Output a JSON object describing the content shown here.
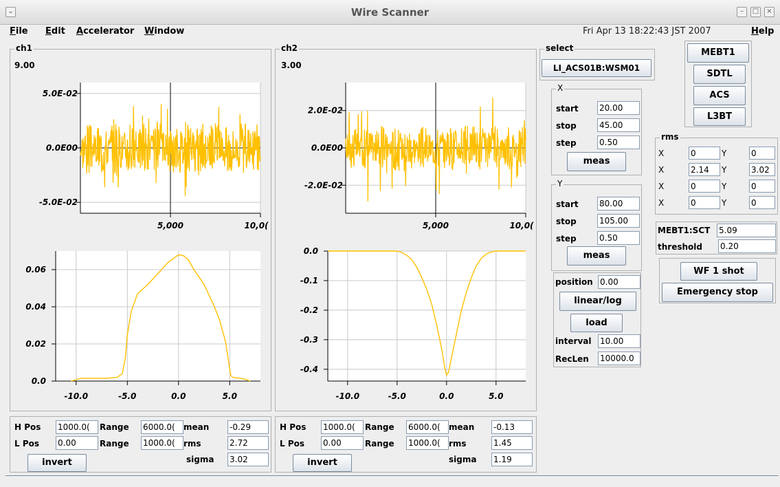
{
  "window": {
    "title": "Wire Scanner"
  },
  "menu": {
    "items": [
      {
        "u": "F",
        "rest": "ile"
      },
      {
        "u": "E",
        "rest": "dit"
      },
      {
        "u": "A",
        "rest": "ccelerator"
      },
      {
        "u": "W",
        "rest": "indow"
      }
    ],
    "datetime": "Fri Apr 13 18:22:43 JST 2007",
    "help_u": "H",
    "help_rest": "elp"
  },
  "colors": {
    "signal": "#ffc000",
    "background": "#eeeeee"
  },
  "ch1": {
    "label": "ch1",
    "value": "9.00",
    "bottom": {
      "hpos_label": "H Pos",
      "hpos": "1000.0(",
      "range1_label": "Range",
      "range1": "6000.0(",
      "mean_label": "mean",
      "mean": "-0.29",
      "lpos_label": "L Pos",
      "lpos": "0.00",
      "range2_label": "Range",
      "range2": "1000.0(",
      "rms_label": "rms",
      "rms": "2.72",
      "sigma_label": "sigma",
      "sigma": "3.02",
      "invert": "invert"
    }
  },
  "ch2": {
    "label": "ch2",
    "value": "3.00",
    "bottom": {
      "hpos_label": "H Pos",
      "hpos": "1000.0(",
      "range1_label": "Range",
      "range1": "6000.0(",
      "mean_label": "mean",
      "mean": "-0.13",
      "lpos_label": "L Pos",
      "lpos": "0.00",
      "range2_label": "Range",
      "range2": "1000.0(",
      "rms_label": "rms",
      "rms": "1.45",
      "sigma_label": "sigma",
      "sigma": "1.19",
      "invert": "invert"
    }
  },
  "select": {
    "label": "select",
    "value": "LI_ACS01B:WSM01"
  },
  "sections": [
    "MEBT1",
    "SDTL",
    "ACS",
    "L3BT"
  ],
  "xscan": {
    "label": "X",
    "start_label": "start",
    "start": "20.00",
    "stop_label": "stop",
    "stop": "45.00",
    "step_label": "step",
    "step": "0.50",
    "meas": "meas"
  },
  "yscan": {
    "label": "Y",
    "start_label": "start",
    "start": "80.00",
    "stop_label": "stop",
    "stop": "105.00",
    "step_label": "step",
    "step": "0.50",
    "meas": "meas"
  },
  "control": {
    "position_label": "position",
    "position": "0.00",
    "linlog": "linear/log",
    "load": "load",
    "interval_label": "interval",
    "interval": "10.00",
    "reclen_label": "RecLen",
    "reclen": "10000.0"
  },
  "rms": {
    "label": "rms",
    "rows": [
      {
        "xl": "X",
        "x": "0",
        "yl": "Y",
        "y": "0"
      },
      {
        "xl": "X",
        "x": "2.14",
        "yl": "Y",
        "y": "3.02"
      },
      {
        "xl": "X",
        "x": "0",
        "yl": "Y",
        "y": "0"
      },
      {
        "xl": "X",
        "x": "0",
        "yl": "Y",
        "y": "0"
      }
    ]
  },
  "sct": {
    "label": "MEBT1:SCT",
    "value": "5.09",
    "threshold_label": "threshold",
    "threshold": "0.20"
  },
  "buttons": {
    "wf": "WF 1 shot",
    "emergency": "Emergency stop"
  },
  "chart_data": [
    {
      "type": "line",
      "name": "ch1 waveform",
      "xlim": [
        0,
        10000
      ],
      "ylim": [
        -0.06,
        0.06
      ],
      "xticks": [
        "5,000",
        "10,0("
      ],
      "yticks": [
        "5.0E-02",
        "0.0E00",
        "-5.0E-02"
      ],
      "ytick_values": [
        0.05,
        0,
        -0.05
      ],
      "xtick_values": [
        5000,
        10000
      ],
      "amplitude": 0.025,
      "peak": 0.05
    },
    {
      "type": "line",
      "name": "ch1 profile",
      "xlim": [
        -12,
        8
      ],
      "ylim": [
        0,
        0.07
      ],
      "xticks": [
        "-10.0",
        "-5.0",
        "0.0",
        "5.0"
      ],
      "xtick_values": [
        -10,
        -5,
        0,
        5
      ],
      "yticks": [
        "0.06",
        "0.04",
        "0.02",
        "0.0"
      ],
      "ytick_values": [
        0.06,
        0.04,
        0.02,
        0
      ],
      "x": [
        -10.5,
        -9.5,
        -8,
        -7,
        -6,
        -5.5,
        -5.2,
        -5,
        -4.6,
        -4,
        -3.4,
        -3,
        -2.5,
        -2,
        -1.5,
        -1,
        -0.5,
        0,
        0.5,
        1,
        1.5,
        2,
        2.5,
        3,
        3.5,
        4,
        4.3,
        4.6,
        4.9,
        5.1,
        5.3,
        6,
        6.5,
        7
      ],
      "y": [
        0.0,
        0.0015,
        0.0015,
        0.0015,
        0.002,
        0.004,
        0.012,
        0.025,
        0.038,
        0.047,
        0.05,
        0.052,
        0.055,
        0.058,
        0.061,
        0.064,
        0.066,
        0.068,
        0.0675,
        0.065,
        0.06,
        0.056,
        0.052,
        0.046,
        0.04,
        0.033,
        0.027,
        0.021,
        0.01,
        0.003,
        0.002,
        0.0015,
        0.001,
        0.0
      ]
    },
    {
      "type": "line",
      "name": "ch2 waveform",
      "xlim": [
        0,
        10000
      ],
      "ylim": [
        -0.035,
        0.035
      ],
      "xticks": [
        "5,000",
        "10,0("
      ],
      "xtick_values": [
        5000,
        10000
      ],
      "yticks": [
        "2.0E-02",
        "0.0E00",
        "-2.0E-02"
      ],
      "ytick_values": [
        0.02,
        0,
        -0.02
      ],
      "amplitude": 0.012,
      "peak": 0.03
    },
    {
      "type": "line",
      "name": "ch2 profile",
      "xlim": [
        -12,
        8
      ],
      "ylim": [
        -0.44,
        0.0
      ],
      "xticks": [
        "-10.0",
        "-5.0",
        "0.0",
        "5.0"
      ],
      "xtick_values": [
        -10,
        -5,
        0,
        5
      ],
      "yticks": [
        "0.0",
        "-0.1",
        "-0.2",
        "-0.3",
        "-0.4"
      ],
      "ytick_values": [
        0,
        -0.1,
        -0.2,
        -0.3,
        -0.4
      ],
      "x": [
        -12,
        -10,
        -8,
        -6,
        -5,
        -4.5,
        -4,
        -3.5,
        -3,
        -2.5,
        -2,
        -1.5,
        -1,
        -0.5,
        -0.2,
        0,
        0.2,
        0.5,
        1,
        1.5,
        2,
        2.5,
        3,
        3.5,
        4,
        4.5,
        5,
        6,
        7,
        8
      ],
      "y": [
        0,
        0,
        0,
        0,
        0,
        -0.005,
        -0.015,
        -0.03,
        -0.055,
        -0.09,
        -0.13,
        -0.18,
        -0.25,
        -0.33,
        -0.39,
        -0.42,
        -0.41,
        -0.36,
        -0.28,
        -0.2,
        -0.14,
        -0.09,
        -0.05,
        -0.025,
        -0.01,
        -0.003,
        0,
        0,
        0,
        0
      ]
    }
  ]
}
